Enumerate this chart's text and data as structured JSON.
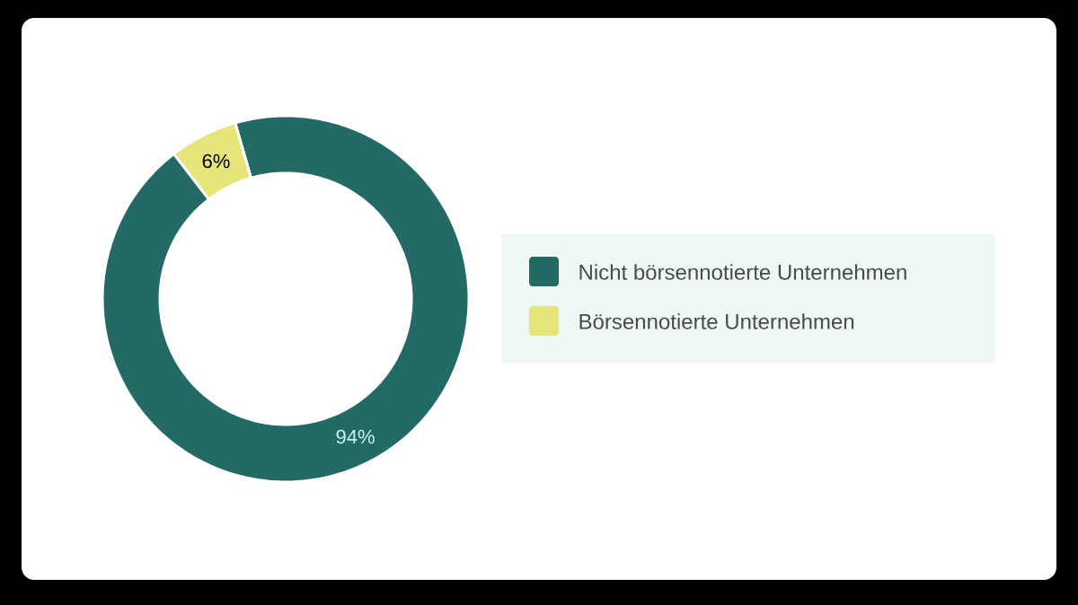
{
  "chart_data": {
    "type": "donut",
    "categories": [
      "Nicht börsennotierte Unternehmen",
      "Börsennotierte Unternehmen"
    ],
    "values": [
      94,
      6
    ],
    "colors": [
      "#236a66",
      "#e6e57a"
    ],
    "value_labels": [
      "94%",
      "6%"
    ],
    "legend": "right"
  }
}
